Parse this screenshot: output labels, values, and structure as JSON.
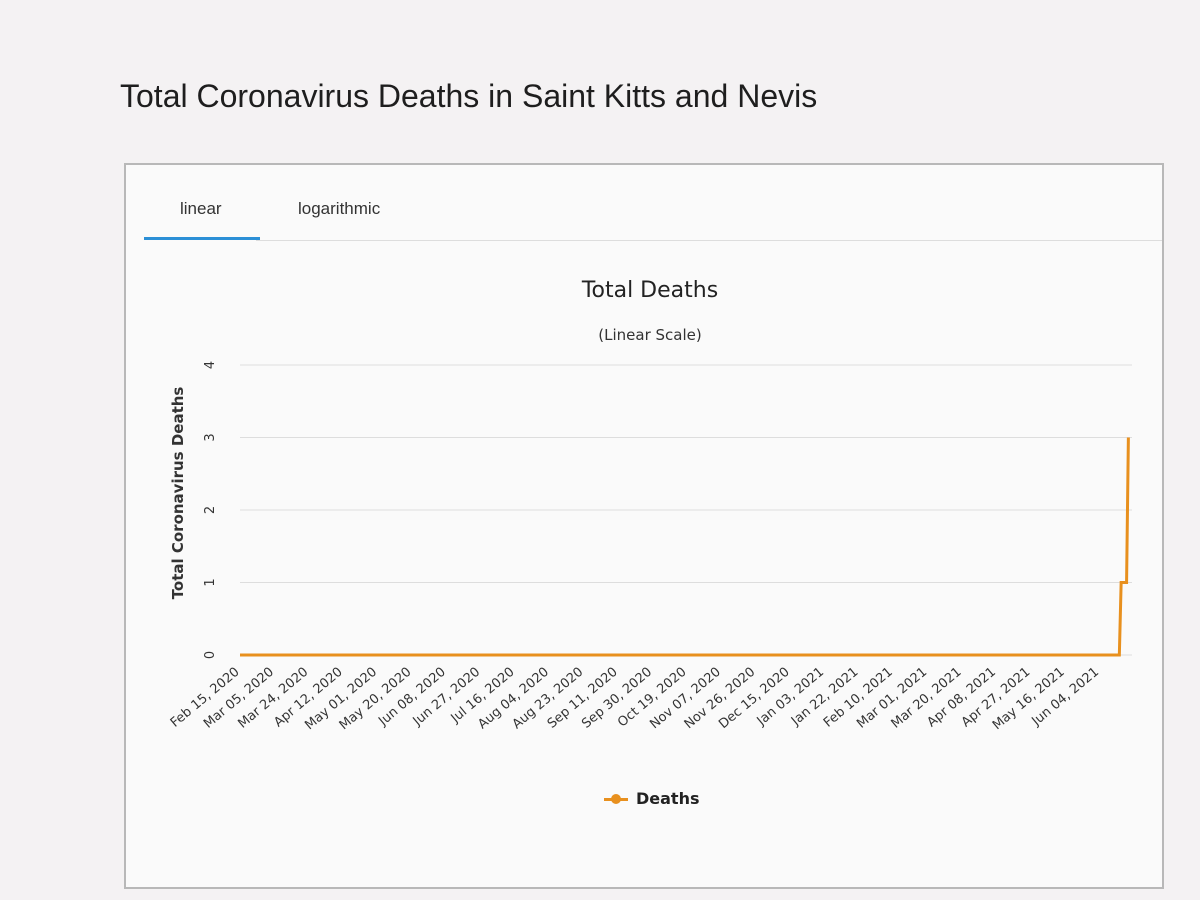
{
  "page": {
    "title": "Total Coronavirus Deaths in Saint Kitts and Nevis"
  },
  "tabs": [
    {
      "label": "linear",
      "selected": true
    },
    {
      "label": "logarithmic",
      "selected": false
    }
  ],
  "colors": {
    "series": "#e8901e",
    "tab_underline": "#2b8fd6",
    "grid": "#dddddd"
  },
  "chart_data": {
    "type": "line",
    "title": "Total Deaths",
    "subtitle": "(Linear Scale)",
    "ylabel": "Total Coronavirus Deaths",
    "xlabel": "",
    "ylim": [
      0,
      4
    ],
    "yticks": [
      0,
      1,
      2,
      3,
      4
    ],
    "xlim": [
      "2020-02-15",
      "2021-06-22"
    ],
    "grid": true,
    "legend_position": "bottom-center",
    "xticks": [
      "Feb 15, 2020",
      "Mar 05, 2020",
      "Mar 24, 2020",
      "Apr 12, 2020",
      "May 01, 2020",
      "May 20, 2020",
      "Jun 08, 2020",
      "Jun 27, 2020",
      "Jul 16, 2020",
      "Aug 04, 2020",
      "Aug 23, 2020",
      "Sep 11, 2020",
      "Sep 30, 2020",
      "Oct 19, 2020",
      "Nov 07, 2020",
      "Nov 26, 2020",
      "Dec 15, 2020",
      "Jan 03, 2021",
      "Jan 22, 2021",
      "Feb 10, 2021",
      "Mar 01, 2021",
      "Mar 20, 2021",
      "Apr 08, 2021",
      "Apr 27, 2021",
      "May 16, 2021",
      "Jun 04, 2021"
    ],
    "series": [
      {
        "name": "Deaths",
        "points": [
          {
            "x": "2020-02-15",
            "y": 0
          },
          {
            "x": "2021-06-15",
            "y": 0
          },
          {
            "x": "2021-06-16",
            "y": 1
          },
          {
            "x": "2021-06-17",
            "y": 1
          },
          {
            "x": "2021-06-19",
            "y": 1
          },
          {
            "x": "2021-06-20",
            "y": 3
          }
        ]
      }
    ]
  }
}
